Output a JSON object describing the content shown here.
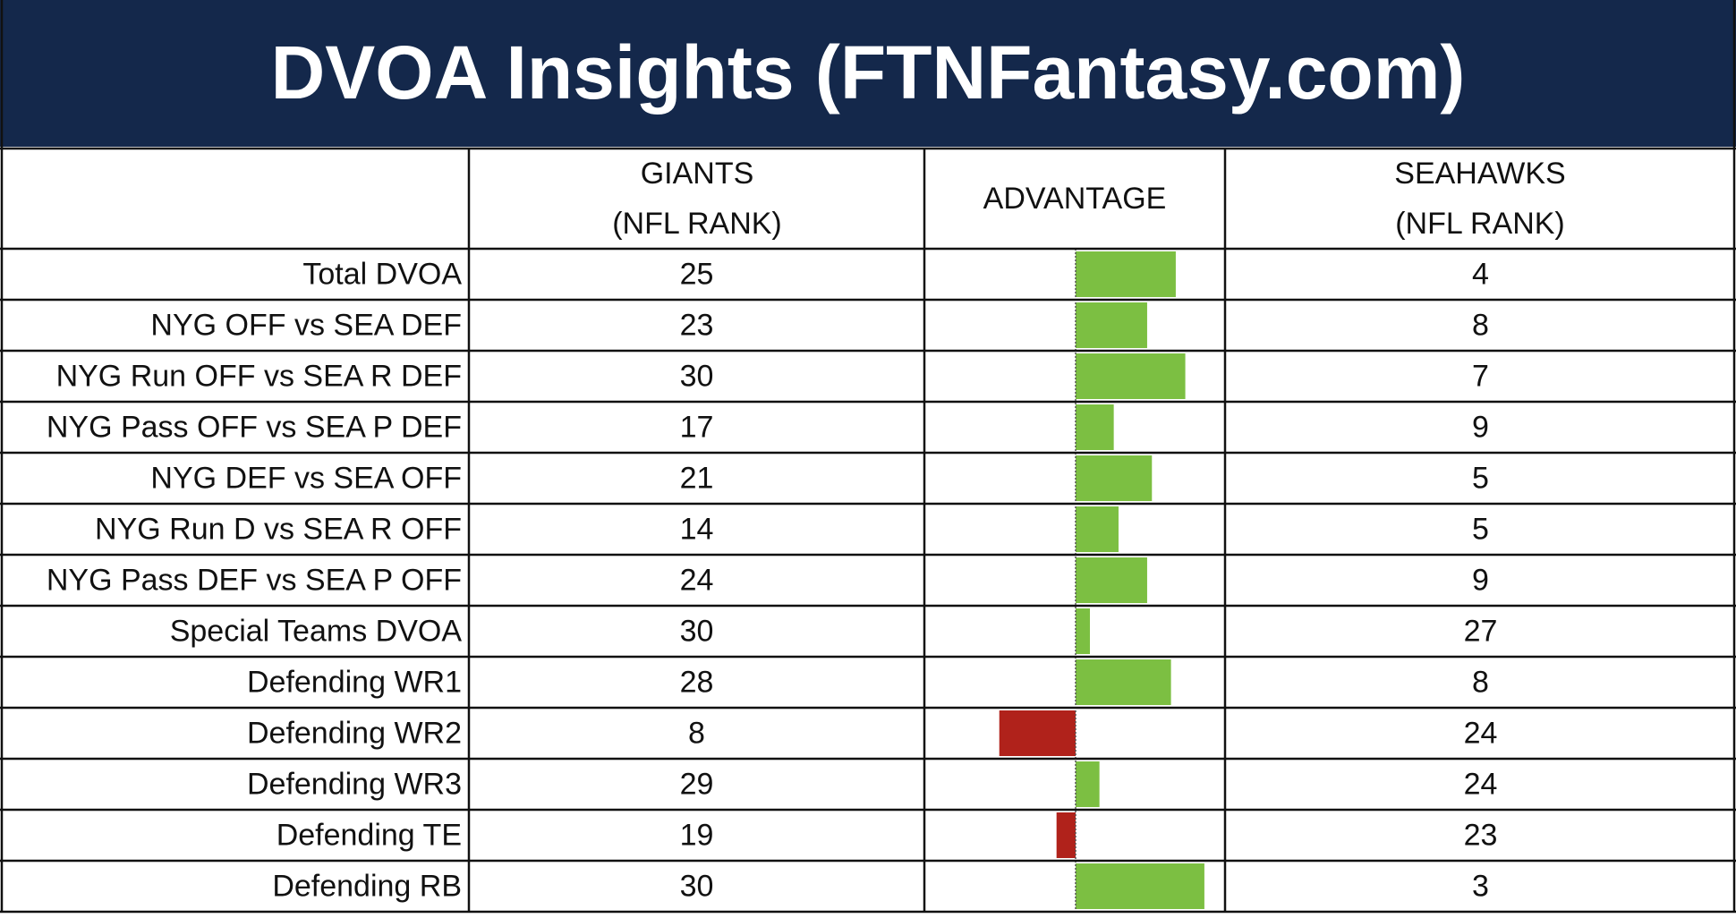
{
  "title": "DVOA Insights (FTNFantasy.com)",
  "header": {
    "team1_line1": "GIANTS",
    "team1_line2": "(NFL RANK)",
    "advantage": "ADVANTAGE",
    "team2_line1": "SEAHAWKS",
    "team2_line2": "(NFL RANK)"
  },
  "rows": [
    {
      "label": "Total DVOA",
      "giants": 25,
      "seahawks": 4,
      "advantage": 21
    },
    {
      "label": "NYG OFF vs SEA DEF",
      "giants": 23,
      "seahawks": 8,
      "advantage": 15
    },
    {
      "label": "NYG Run OFF vs SEA R DEF",
      "giants": 30,
      "seahawks": 7,
      "advantage": 23
    },
    {
      "label": "NYG Pass OFF vs SEA P DEF",
      "giants": 17,
      "seahawks": 9,
      "advantage": 8
    },
    {
      "label": "NYG DEF vs SEA OFF",
      "giants": 21,
      "seahawks": 5,
      "advantage": 16
    },
    {
      "label": "NYG Run D vs SEA R OFF",
      "giants": 14,
      "seahawks": 5,
      "advantage": 9
    },
    {
      "label": "NYG Pass DEF vs SEA P OFF",
      "giants": 24,
      "seahawks": 9,
      "advantage": 15
    },
    {
      "label": "Special Teams DVOA",
      "giants": 30,
      "seahawks": 27,
      "advantage": 3
    },
    {
      "label": "Defending WR1",
      "giants": 28,
      "seahawks": 8,
      "advantage": 20
    },
    {
      "label": "Defending WR2",
      "giants": 8,
      "seahawks": 24,
      "advantage": -16
    },
    {
      "label": "Defending WR3",
      "giants": 29,
      "seahawks": 24,
      "advantage": 5
    },
    {
      "label": "Defending TE",
      "giants": 19,
      "seahawks": 23,
      "advantage": -4
    },
    {
      "label": "Defending RB",
      "giants": 30,
      "seahawks": 3,
      "advantage": 27
    }
  ]
}
